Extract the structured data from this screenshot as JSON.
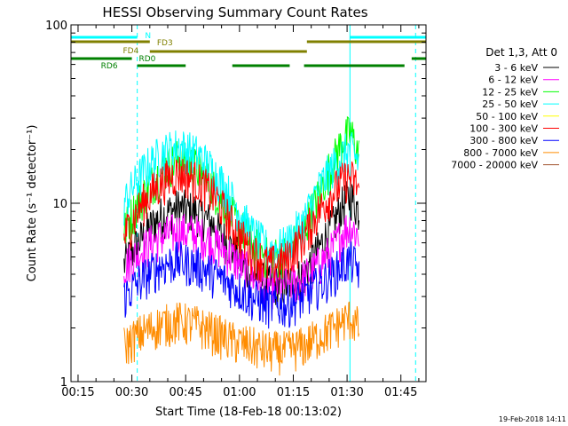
{
  "chart_data": {
    "type": "line",
    "title": "HESSI Observing Summary Count Rates",
    "xlabel": "Start Time (18-Feb-18 00:13:02)",
    "ylabel": "Count Rate (s⁻¹ detector⁻¹)",
    "x_unit": "minutes after 00:00 UT",
    "xlim": [
      13.03,
      112
    ],
    "ylim": [
      1,
      100
    ],
    "y_scale": "log",
    "x_ticks": [
      {
        "value": 15,
        "label": "00:15"
      },
      {
        "value": 30,
        "label": "00:30"
      },
      {
        "value": 45,
        "label": "00:45"
      },
      {
        "value": 60,
        "label": "01:00"
      },
      {
        "value": 75,
        "label": "01:15"
      },
      {
        "value": 90,
        "label": "01:30"
      },
      {
        "value": 105,
        "label": "01:45"
      }
    ],
    "y_ticks": [
      {
        "value": 1,
        "label": "1"
      },
      {
        "value": 10,
        "label": "10"
      },
      {
        "value": 100,
        "label": "100"
      }
    ],
    "legend": {
      "placement": "right",
      "header": "Det 1,3, Att 0",
      "entries": [
        {
          "label": "3 - 6 keV",
          "color": "#000000"
        },
        {
          "label": "6 - 12 keV",
          "color": "#ff00ff"
        },
        {
          "label": "12 - 25 keV",
          "color": "#00ff00"
        },
        {
          "label": "25 - 50 keV",
          "color": "#00ffff"
        },
        {
          "label": "50 - 100 keV",
          "color": "#ffff00"
        },
        {
          "label": "100 - 300 keV",
          "color": "#ff0000"
        },
        {
          "label": "300 - 800 keV",
          "color": "#0000ff"
        },
        {
          "label": "800 - 7000 keV",
          "color": "#ff8c00"
        },
        {
          "label": "7000 - 20000 keV",
          "color": "#a0522d"
        }
      ]
    },
    "series": [
      {
        "name": "3 - 6 keV",
        "color": "#000000",
        "start": 27.8,
        "end": 93.5,
        "x": [
          27.8,
          33,
          38,
          43,
          48,
          53,
          58,
          63,
          68,
          73,
          78,
          82,
          86,
          89,
          91,
          93.5
        ],
        "y": [
          4.5,
          6.5,
          8.5,
          9.5,
          9,
          7.5,
          5.5,
          4,
          3.5,
          3.5,
          4,
          5.5,
          7.5,
          10,
          11,
          9
        ]
      },
      {
        "name": "6 - 12 keV",
        "color": "#ff00ff",
        "start": 27.8,
        "end": 93.5,
        "x": [
          27.8,
          33,
          38,
          43,
          48,
          53,
          58,
          63,
          68,
          73,
          78,
          82,
          86,
          89,
          91,
          93.5
        ],
        "y": [
          4.5,
          5.5,
          6.5,
          7,
          6.8,
          6,
          5,
          4,
          3.5,
          3.5,
          3.8,
          4.5,
          5.5,
          7,
          7.5,
          6.5
        ]
      },
      {
        "name": "12 - 25 keV",
        "color": "#00ff00",
        "start": 27.8,
        "end": 93.5,
        "x": [
          27.8,
          33,
          38,
          43,
          48,
          53,
          58,
          63,
          68,
          73,
          78,
          82,
          86,
          89,
          91,
          93.5
        ],
        "y": [
          7,
          11,
          15,
          18,
          16,
          12,
          8.5,
          6,
          5,
          5.2,
          7,
          11,
          17,
          23,
          25,
          18
        ]
      },
      {
        "name": "25 - 50 keV",
        "color": "#00ffff",
        "start": 27.8,
        "end": 93.5,
        "x": [
          27.8,
          33,
          38,
          43,
          48,
          53,
          58,
          63,
          68,
          73,
          78,
          82,
          86,
          89,
          91,
          93.5
        ],
        "y": [
          10,
          15,
          19,
          21,
          19,
          15,
          10.5,
          7,
          5.5,
          5.8,
          8,
          12,
          16,
          19,
          20,
          17
        ]
      },
      {
        "name": "100 - 300 keV",
        "color": "#ff0000",
        "start": 27.8,
        "end": 93.5,
        "x": [
          27.8,
          33,
          38,
          43,
          48,
          53,
          58,
          63,
          68,
          73,
          78,
          82,
          86,
          89,
          91,
          93.5
        ],
        "y": [
          6.5,
          10,
          13,
          15,
          13.5,
          11,
          7.5,
          5.5,
          4.5,
          4.8,
          6.5,
          9,
          11.5,
          13.5,
          14,
          12
        ]
      },
      {
        "name": "300 - 800 keV",
        "color": "#0000ff",
        "start": 27.8,
        "end": 93.5,
        "x": [
          27.8,
          33,
          38,
          43,
          48,
          53,
          58,
          63,
          68,
          73,
          78,
          82,
          86,
          89,
          91,
          93.5
        ],
        "y": [
          3,
          3.8,
          4.5,
          4.8,
          4.5,
          4,
          3.5,
          3,
          2.7,
          2.7,
          3,
          3.5,
          4,
          4.6,
          4.8,
          4.2
        ]
      },
      {
        "name": "800 - 7000 keV",
        "color": "#ff8c00",
        "start": 27.8,
        "end": 93.5,
        "x": [
          27.8,
          33,
          38,
          43,
          48,
          53,
          58,
          63,
          68,
          73,
          78,
          82,
          86,
          89,
          91,
          93.5
        ],
        "y": [
          1.6,
          1.9,
          2.1,
          2.2,
          2.1,
          1.9,
          1.7,
          1.6,
          1.5,
          1.5,
          1.6,
          1.8,
          2,
          2.2,
          2.3,
          2
        ]
      }
    ],
    "vertical_markers": [
      {
        "x": 13.03,
        "style": "solid",
        "color": "#00ffff"
      },
      {
        "x": 31.5,
        "style": "dashed",
        "color": "#00ffff"
      },
      {
        "x": 90.8,
        "style": "solid",
        "color": "#00ffff"
      },
      {
        "x": 109.1,
        "style": "dashed",
        "color": "#00ffff"
      }
    ],
    "flag_bars": [
      {
        "color": "#00ffff",
        "y": 42,
        "segments": [
          [
            13.03,
            31.5
          ],
          [
            90.8,
            112
          ]
        ]
      },
      {
        "color": "#808000",
        "y": 47,
        "segments": [
          [
            13.03,
            35
          ],
          [
            78.8,
            112
          ]
        ]
      },
      {
        "color": "#808000",
        "y": 58,
        "segments": [
          [
            35,
            78.8
          ]
        ]
      },
      {
        "color": "#008000",
        "y": 66,
        "segments": [
          [
            13.03,
            30
          ],
          [
            108,
            112
          ]
        ]
      },
      {
        "color": "#008000",
        "y": 74,
        "segments": [
          [
            31.5,
            45
          ],
          [
            58,
            74
          ],
          [
            78,
            106
          ]
        ]
      }
    ],
    "flag_labels": [
      {
        "text": "N",
        "x": 34.5,
        "y": 43,
        "color": "#00ffff"
      },
      {
        "text": "FD3",
        "x": 39.2,
        "y": 51,
        "color": "#808000"
      },
      {
        "text": "FD4",
        "x": 29.7,
        "y": 60,
        "color": "#808000"
      },
      {
        "text": "RD0",
        "x": 34.3,
        "y": 69,
        "color": "#008000"
      },
      {
        "text": "RD6",
        "x": 23.7,
        "y": 77,
        "color": "#008000"
      }
    ]
  },
  "footer": {
    "timestamp": "19-Feb-2018 14:11"
  }
}
